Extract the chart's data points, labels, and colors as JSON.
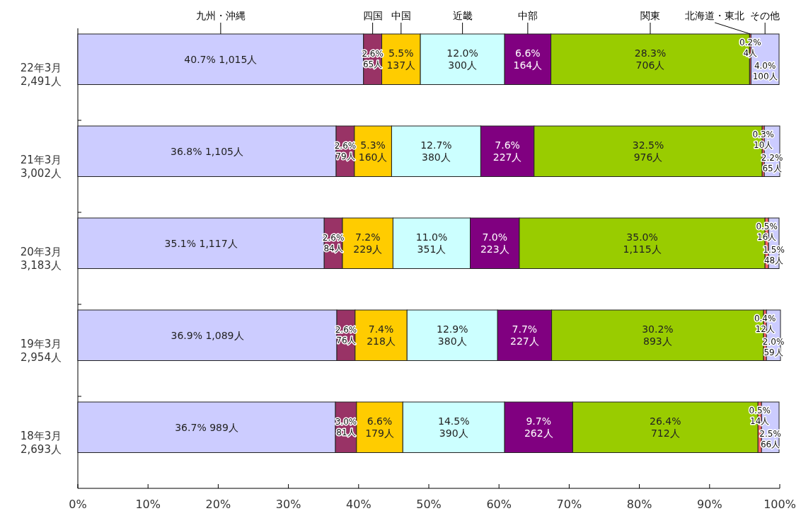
{
  "chart_data": {
    "type": "bar",
    "orientation": "horizontal",
    "stacked": true,
    "legend": "top",
    "grid": false,
    "categories": [
      "22年3月\n2,491人",
      "21年3月\n3,002人",
      "20年3月\n3,183人",
      "19年3月\n2,954人",
      "18年3月\n2,693人"
    ],
    "xlim": [
      0,
      100
    ],
    "xticks": [
      {
        "value": 0,
        "label": "0%"
      },
      {
        "value": 10,
        "label": "10%"
      },
      {
        "value": 20,
        "label": "20%"
      },
      {
        "value": 30,
        "label": "30%"
      },
      {
        "value": 40,
        "label": "40%"
      },
      {
        "value": 50,
        "label": "50%"
      },
      {
        "value": 60,
        "label": "60%"
      },
      {
        "value": 70,
        "label": "70%"
      },
      {
        "value": 80,
        "label": "80%"
      },
      {
        "value": 90,
        "label": "90%"
      },
      {
        "value": 100,
        "label": "100%"
      }
    ],
    "series": [
      {
        "name": "九州・沖縄",
        "color": "#ccccff",
        "values": [
          40.7,
          36.8,
          35.1,
          36.9,
          36.7
        ],
        "value_labels": [
          "40.7% 1,015人",
          "36.8% 1,105人",
          "35.1% 1,117人",
          "36.9% 1,089人",
          "36.7% 989人"
        ]
      },
      {
        "name": "四国",
        "color": "#993366",
        "values": [
          2.6,
          2.6,
          2.6,
          2.6,
          3.0
        ],
        "value_labels": [
          "2.6%\n65人",
          "2.6%\n79人",
          "2.6%\n84人",
          "2.6%\n76人",
          "3.0%\n81人"
        ]
      },
      {
        "name": "中国",
        "color": "#ffcc00",
        "values": [
          5.5,
          5.3,
          7.2,
          7.4,
          6.6
        ],
        "value_labels": [
          "5.5%\n137人",
          "5.3%\n160人",
          "7.2%\n229人",
          "7.4%\n218人",
          "6.6%\n179人"
        ]
      },
      {
        "name": "近畿",
        "color": "#ccffff",
        "values": [
          12.0,
          12.7,
          11.0,
          12.9,
          14.5
        ],
        "value_labels": [
          "12.0%\n300人",
          "12.7%\n380人",
          "11.0%\n351人",
          "12.9%\n380人",
          "14.5%\n390人"
        ]
      },
      {
        "name": "中部",
        "color": "#800080",
        "values": [
          6.6,
          7.6,
          7.0,
          7.7,
          9.7
        ],
        "value_labels": [
          "6.6%\n164人",
          "7.6%\n227人",
          "7.0%\n223人",
          "7.7%\n227人",
          "9.7%\n262人"
        ]
      },
      {
        "name": "関東",
        "color": "#99cc00",
        "values": [
          28.3,
          32.5,
          35.0,
          30.2,
          26.4
        ],
        "value_labels": [
          "28.3%\n706人",
          "32.5%\n976人",
          "35.0%\n1,115人",
          "30.2%\n893人",
          "26.4%\n712人"
        ]
      },
      {
        "name": "北海道・東北",
        "color": "#ff6666",
        "values": [
          0.2,
          0.3,
          0.5,
          0.4,
          0.5
        ],
        "value_labels": [
          "0.2%\n4人",
          "0.3%\n10人",
          "0.5%\n16人",
          "0.4%\n12人",
          "0.5%\n14人"
        ]
      },
      {
        "name": "その他",
        "color": "#ccccff",
        "values": [
          4.0,
          2.2,
          1.5,
          2.0,
          2.5
        ],
        "value_labels": [
          "4.0%\n100人",
          "2.2%\n65人",
          "1.5%\n48人",
          "2.0%\n59人",
          "2.5%\n66人"
        ]
      }
    ]
  }
}
